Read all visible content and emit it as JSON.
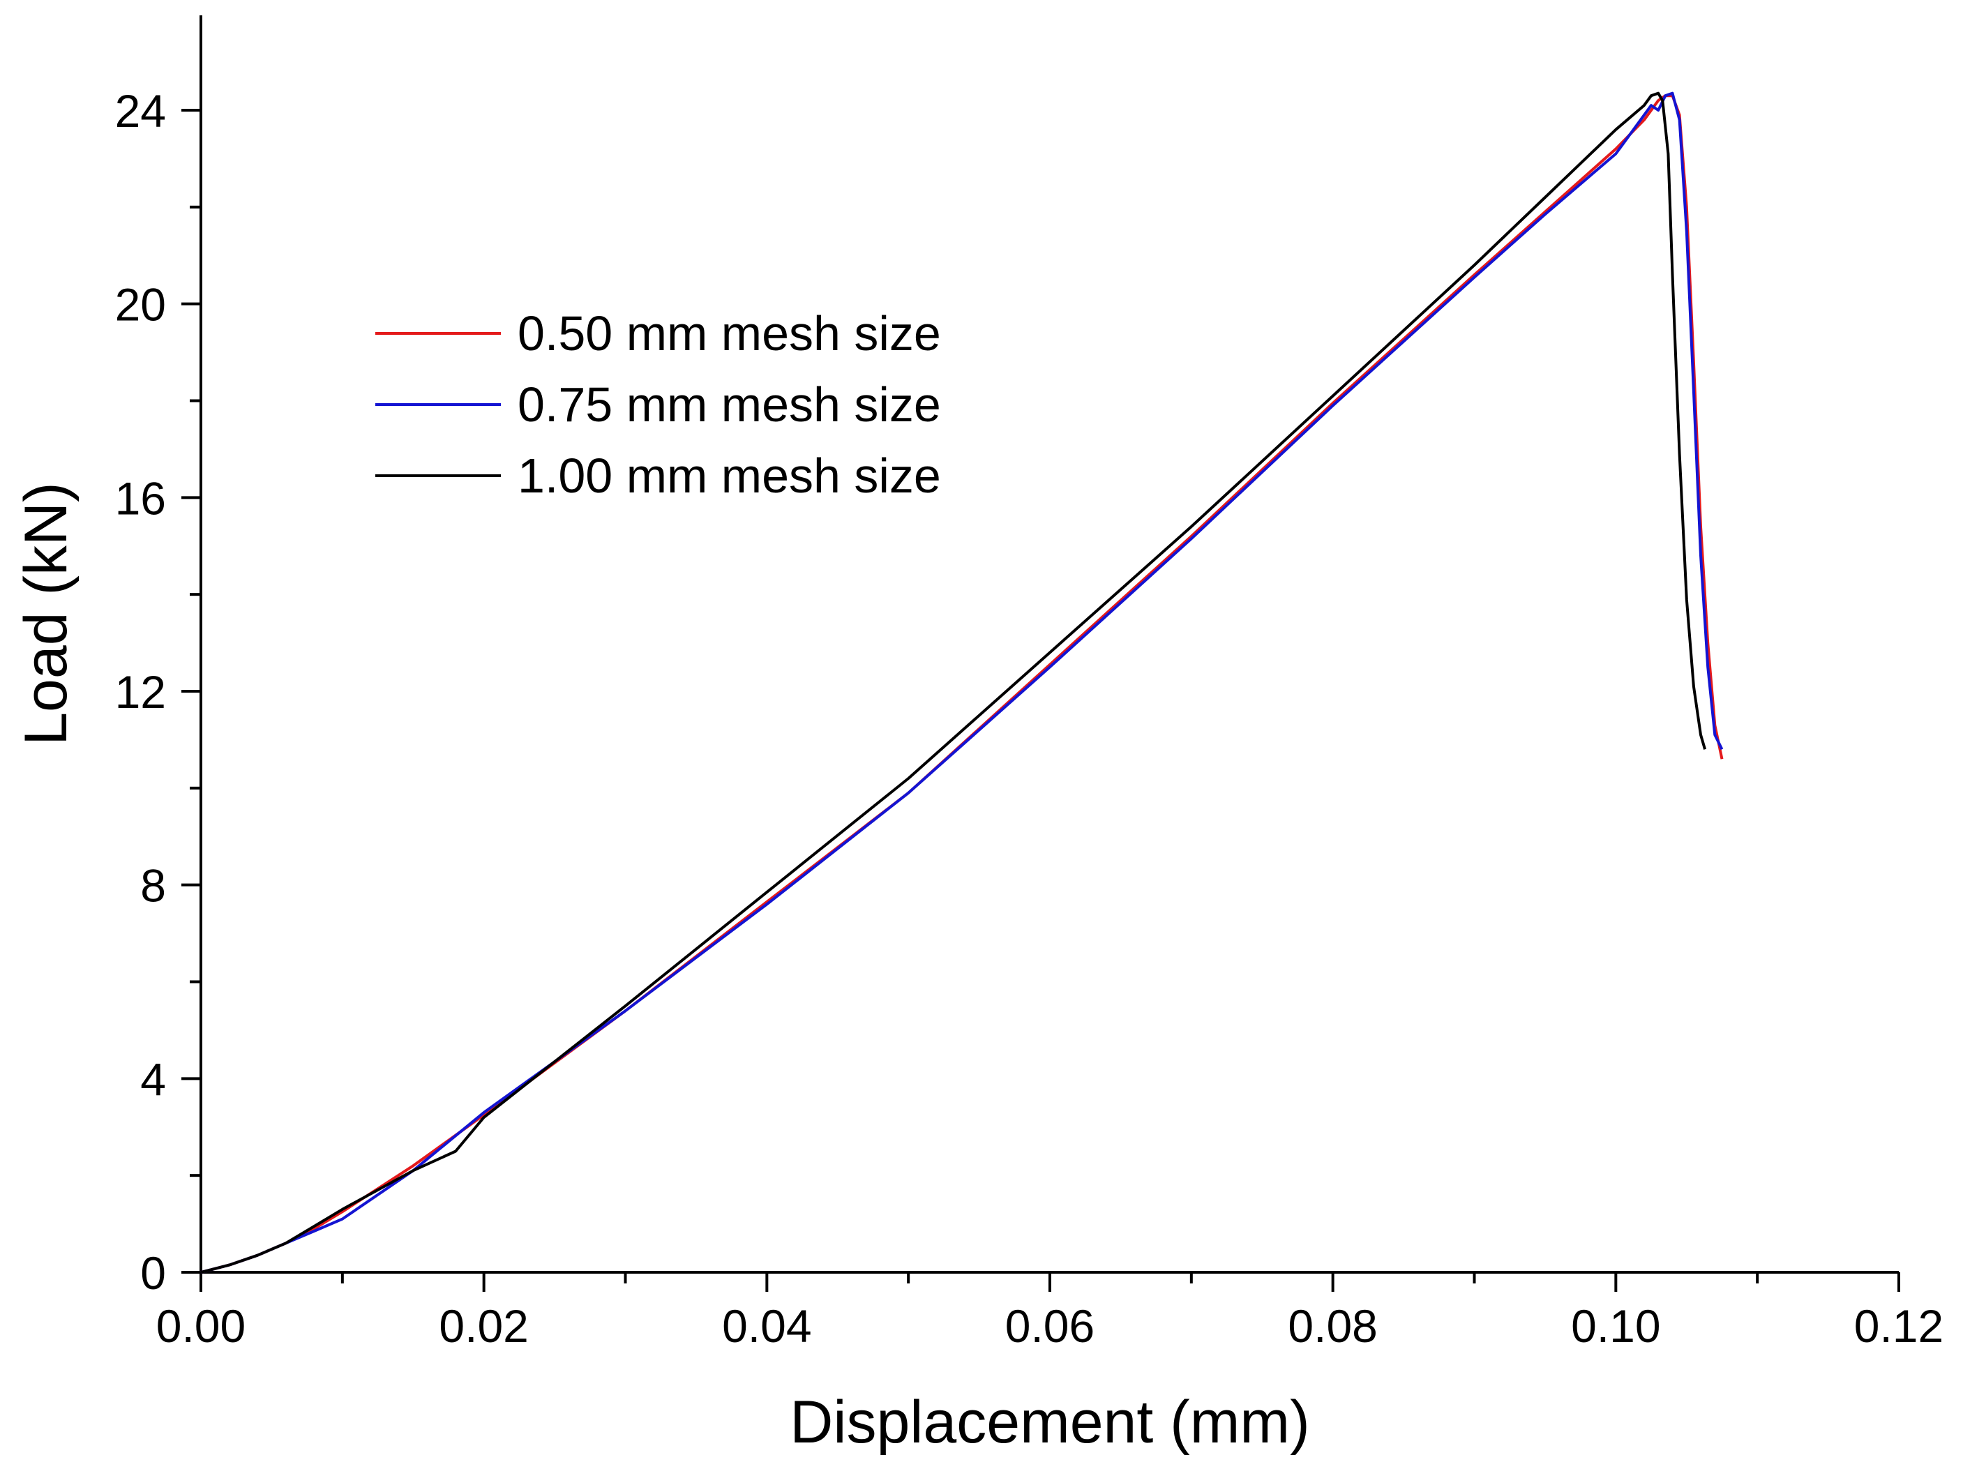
{
  "chart_data": {
    "type": "line",
    "title": "",
    "xlabel": "Displacement (mm)",
    "ylabel": "Load (kN)",
    "xlim": [
      0,
      0.12
    ],
    "ylim": [
      0,
      24
    ],
    "x_ticks": [
      "0.00",
      "0.02",
      "0.04",
      "0.06",
      "0.08",
      "0.10",
      "0.12"
    ],
    "y_ticks": [
      "0",
      "4",
      "8",
      "12",
      "16",
      "20",
      "24"
    ],
    "grid": false,
    "legend_position": "upper-left (inside plot)",
    "series": [
      {
        "name": "0.50 mm mesh size",
        "color": "#e41a1c",
        "x": [
          0.0,
          0.002,
          0.004,
          0.006,
          0.008,
          0.01,
          0.015,
          0.02,
          0.03,
          0.04,
          0.05,
          0.06,
          0.07,
          0.08,
          0.09,
          0.095,
          0.1,
          0.102,
          0.103,
          0.1035,
          0.104,
          0.1045,
          0.105,
          0.1055,
          0.106,
          0.1065,
          0.107,
          0.1075
        ],
        "y": [
          0.0,
          0.15,
          0.35,
          0.6,
          0.9,
          1.25,
          2.2,
          3.25,
          5.4,
          7.65,
          9.9,
          12.55,
          15.2,
          17.95,
          20.6,
          21.9,
          23.2,
          23.8,
          24.2,
          24.3,
          24.3,
          23.9,
          22.0,
          18.8,
          15.4,
          13.0,
          11.3,
          10.6
        ]
      },
      {
        "name": "0.75 mm mesh size",
        "color": "#1414d2",
        "x": [
          0.0,
          0.002,
          0.004,
          0.006,
          0.008,
          0.01,
          0.015,
          0.02,
          0.03,
          0.04,
          0.05,
          0.06,
          0.07,
          0.08,
          0.09,
          0.095,
          0.1,
          0.102,
          0.1025,
          0.103,
          0.1035,
          0.104,
          0.1045,
          0.105,
          0.1055,
          0.106,
          0.1065,
          0.107,
          0.1075
        ],
        "y": [
          0.0,
          0.15,
          0.35,
          0.6,
          0.85,
          1.1,
          2.1,
          3.3,
          5.4,
          7.6,
          9.9,
          12.5,
          15.15,
          17.9,
          20.55,
          21.85,
          23.1,
          23.9,
          24.1,
          24.0,
          24.3,
          24.35,
          23.8,
          21.5,
          18.2,
          14.8,
          12.5,
          11.1,
          10.8
        ]
      },
      {
        "name": "1.00 mm mesh size",
        "color": "#000000",
        "x": [
          0.0,
          0.002,
          0.004,
          0.006,
          0.008,
          0.01,
          0.015,
          0.018,
          0.02,
          0.03,
          0.04,
          0.05,
          0.06,
          0.07,
          0.08,
          0.09,
          0.095,
          0.1,
          0.102,
          0.1025,
          0.103,
          0.1033,
          0.1037,
          0.104,
          0.1045,
          0.105,
          0.1055,
          0.106,
          0.1063
        ],
        "y": [
          0.0,
          0.15,
          0.35,
          0.6,
          0.95,
          1.3,
          2.1,
          2.5,
          3.2,
          5.5,
          7.85,
          10.2,
          12.8,
          15.4,
          18.1,
          20.8,
          22.2,
          23.6,
          24.1,
          24.3,
          24.35,
          24.2,
          23.1,
          20.6,
          16.9,
          13.9,
          12.1,
          11.1,
          10.8
        ]
      }
    ]
  }
}
